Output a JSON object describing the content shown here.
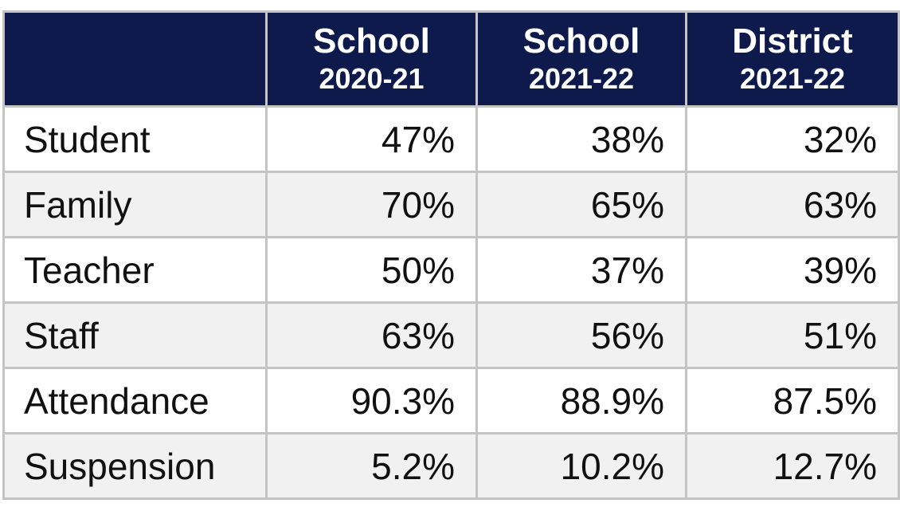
{
  "table": {
    "columns": [
      {
        "line1": "School",
        "line2": "2020-21"
      },
      {
        "line1": "School",
        "line2": "2021-22"
      },
      {
        "line1": "District",
        "line2": "2021-22"
      }
    ],
    "rows": [
      [
        "Student",
        "47%",
        "38%",
        "32%"
      ],
      [
        "Family",
        "70%",
        "65%",
        "63%"
      ],
      [
        "Teacher",
        "50%",
        "37%",
        "39%"
      ],
      [
        "Staff",
        "63%",
        "56%",
        "51%"
      ],
      [
        "Attendance",
        "90.3%",
        "88.9%",
        "87.5%"
      ],
      [
        "Suspension",
        "5.2%",
        "10.2%",
        "12.7%"
      ]
    ]
  }
}
